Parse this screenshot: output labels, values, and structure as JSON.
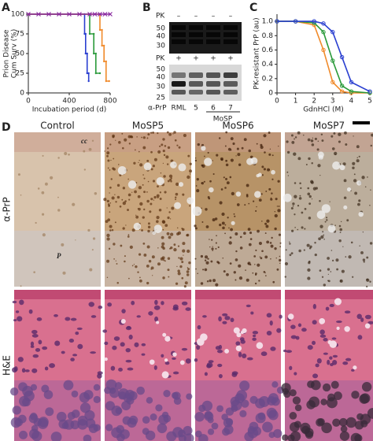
{
  "panel_labels": [
    "A",
    "B",
    "C",
    "D"
  ],
  "chart_data": [
    {
      "type": "line",
      "step": true,
      "ylabel": [
        "Prion Disease",
        "Cum Surv (%)"
      ],
      "xlabel": "Incubation period (d)",
      "xlim": [
        0,
        800
      ],
      "ylim": [
        0,
        100
      ],
      "xticks": [
        0,
        400,
        800
      ],
      "yticks": [
        0,
        25,
        50,
        75,
        100
      ],
      "series": [
        {
          "color": "#2a3fd0",
          "x": [
            0,
            550,
            550,
            560,
            560,
            575,
            575,
            590,
            590
          ],
          "values": [
            100,
            100,
            75,
            75,
            50,
            50,
            25,
            25,
            15
          ]
        },
        {
          "color": "#2a9a3a",
          "x": [
            0,
            600,
            600,
            640,
            640,
            660,
            660,
            700
          ],
          "values": [
            100,
            100,
            75,
            75,
            50,
            50,
            25,
            25
          ]
        },
        {
          "color": "#f08a2a",
          "x": [
            0,
            700,
            700,
            720,
            720,
            740,
            740,
            760,
            760,
            790
          ],
          "values": [
            100,
            100,
            80,
            80,
            60,
            60,
            40,
            40,
            15,
            15
          ]
        },
        {
          "color": "#8a2aa0",
          "marker": "x",
          "x": [
            0,
            100,
            200,
            300,
            400,
            500,
            600,
            650,
            700,
            750,
            800
          ],
          "values": [
            100,
            100,
            100,
            100,
            100,
            100,
            100,
            100,
            100,
            100,
            100
          ]
        }
      ]
    },
    {
      "type": "line",
      "ylabel": "PK-resistant PrP (au)",
      "xlabel": "GdnHCl (M)",
      "xlim": [
        0,
        5
      ],
      "ylim": [
        0,
        1.1
      ],
      "xticks": [
        0,
        1,
        2,
        3,
        4,
        5
      ],
      "yticks": [
        0,
        0.2,
        0.4,
        0.6,
        0.8,
        {
          "value": 1,
          "label": "1.0"
        }
      ],
      "series": [
        {
          "color": "#f08a2a",
          "x": [
            0,
            1,
            2,
            2.5,
            3,
            3.5,
            4,
            5
          ],
          "values": [
            1,
            1,
            0.95,
            0.6,
            0.15,
            0.02,
            0,
            0
          ]
        },
        {
          "color": "#2a9a3a",
          "x": [
            0,
            1,
            2,
            2.5,
            3,
            3.5,
            4,
            5
          ],
          "values": [
            1,
            1,
            0.98,
            0.85,
            0.45,
            0.1,
            0.02,
            0
          ]
        },
        {
          "color": "#2a3fd0",
          "x": [
            0,
            1,
            2,
            2.5,
            3,
            3.5,
            4,
            5
          ],
          "values": [
            1,
            1,
            1,
            0.97,
            0.85,
            0.5,
            0.15,
            0.02
          ]
        }
      ]
    }
  ],
  "blot": {
    "pk": "PK",
    "minus": [
      "–",
      "–",
      "–",
      "–"
    ],
    "plus": [
      "+",
      "+",
      "+",
      "+"
    ],
    "markers_top": [
      "50",
      "40",
      "30"
    ],
    "markers_bottom": [
      "50",
      "40",
      "30",
      "25"
    ],
    "antibody": "α-PrP",
    "lanes": [
      "RML",
      "5",
      "6",
      "7"
    ],
    "group": "MoSP"
  },
  "histology": {
    "columns": [
      "Control",
      "MoSP5",
      "MoSP6",
      "MoSP7"
    ],
    "rows": [
      "α-PrP",
      "H&E"
    ],
    "annotations": [
      "cc",
      "P"
    ]
  }
}
